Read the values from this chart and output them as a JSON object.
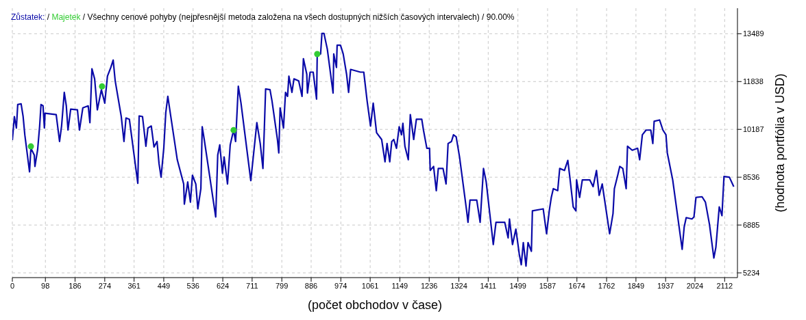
{
  "chart_data": {
    "type": "line",
    "title": "Všechny cenové pohyby (nejpřesnější metoda založena na všech dostupných nižších časových intervalech) / 90.00%",
    "xlabel": "(počet obchodov v čase)",
    "ylabel": "(hodnota portfólia v USD)",
    "legend": "top left",
    "annotations": [
      "/",
      "/"
    ],
    "grid": true,
    "marker": "none",
    "line_style": "solid",
    "xlim": [
      0,
      2150
    ],
    "xticks": [
      0,
      98,
      186,
      274,
      361,
      449,
      536,
      624,
      711,
      799,
      886,
      974,
      1061,
      1149,
      1236,
      1324,
      1411,
      1499,
      1587,
      1674,
      1762,
      1849,
      1937,
      2024,
      2112
    ],
    "ylim": [
      5070,
      14370
    ],
    "yticks": [
      5234,
      6885,
      8536,
      10187,
      11838,
      13489
    ],
    "series": [
      {
        "name": "Zůstatek:",
        "color": "#0a0aa8",
        "x": [
          0,
          6,
          12,
          16,
          26,
          32,
          37,
          51,
          55,
          65,
          67,
          75,
          81,
          85,
          91,
          95,
          97,
          130,
          140,
          146,
          154,
          160,
          165,
          173,
          193,
          199,
          209,
          225,
          230,
          236,
          244,
          252,
          264,
          274,
          282,
          292,
          299,
          305,
          323,
          331,
          337,
          347,
          372,
          376,
          386,
          396,
          402,
          412,
          420,
          429,
          435,
          441,
          449,
          455,
          461,
          469,
          489,
          508,
          510,
          520,
          528,
          534,
          544,
          550,
          559,
          563,
          569,
          603,
          609,
          615,
          623,
          628,
          638,
          646,
          656,
          662,
          670,
          678,
          707,
          715,
          725,
          735,
          743,
          747,
          751,
          764,
          770,
          786,
          790,
          794,
          804,
          810,
          816,
          820,
          829,
          835,
          849,
          859,
          863,
          873,
          875,
          883,
          892,
          902,
          904,
          914,
          918,
          924,
          934,
          951,
          953,
          961,
          963,
          973,
          981,
          991,
          997,
          1003,
          1032,
          1042,
          1052,
          1062,
          1070,
          1080,
          1095,
          1105,
          1111,
          1119,
          1125,
          1131,
          1139,
          1147,
          1154,
          1158,
          1164,
          1174,
          1180,
          1190,
          1198,
          1214,
          1219,
          1229,
          1237,
          1239,
          1249,
          1257,
          1263,
          1277,
          1286,
          1292,
          1302,
          1308,
          1316,
          1326,
          1347,
          1351,
          1357,
          1377,
          1387,
          1397,
          1405,
          1426,
          1434,
          1460,
          1470,
          1474,
          1483,
          1493,
          1503,
          1509,
          1515,
          1523,
          1529,
          1539,
          1542,
          1574,
          1584,
          1592,
          1598,
          1604,
          1617,
          1623,
          1637,
          1647,
          1653,
          1663,
          1671,
          1673,
          1682,
          1690,
          1712,
          1722,
          1732,
          1740,
          1749,
          1771,
          1781,
          1785,
          1795,
          1801,
          1810,
          1820,
          1824,
          1838,
          1854,
          1860,
          1868,
          1879,
          1893,
          1899,
          1903,
          1919,
          1929,
          1938,
          1942,
          1958,
          1986,
          1992,
          1998,
          2015,
          2021,
          2027,
          2045,
          2055,
          2067,
          2080,
          2086,
          2096,
          2104,
          2110,
          2126,
          2139
        ],
        "values": [
          9814,
          10628,
          10233,
          11046,
          11070,
          10628,
          10000,
          8722,
          9535,
          9303,
          8908,
          9489,
          10303,
          11046,
          11000,
          10233,
          10744,
          10698,
          9768,
          10303,
          11465,
          11000,
          10163,
          10884,
          10861,
          10163,
          10930,
          11000,
          10419,
          12279,
          11930,
          10861,
          11558,
          11093,
          12023,
          12325,
          12581,
          11860,
          10628,
          9768,
          10582,
          10535,
          8326,
          10651,
          10628,
          9605,
          10233,
          10303,
          9582,
          9768,
          9001,
          8536,
          9535,
          10768,
          11326,
          10698,
          9140,
          8303,
          7606,
          8373,
          7675,
          8605,
          8303,
          7443,
          8140,
          10279,
          9838,
          7164,
          9303,
          9652,
          8675,
          9233,
          8303,
          9652,
          10163,
          9768,
          11674,
          11093,
          8419,
          9303,
          10419,
          9698,
          8838,
          10163,
          11581,
          11558,
          11163,
          9838,
          9373,
          10930,
          10233,
          11465,
          11326,
          12023,
          11465,
          11930,
          11860,
          11326,
          12628,
          12093,
          11442,
          12163,
          12163,
          11233,
          12744,
          12790,
          13500,
          13500,
          12953,
          11442,
          12790,
          12325,
          13093,
          13093,
          12790,
          12093,
          11465,
          12256,
          12163,
          12163,
          11163,
          10303,
          11093,
          10070,
          9838,
          9070,
          9698,
          9070,
          9768,
          9838,
          9535,
          10279,
          10000,
          10396,
          9605,
          9140,
          10698,
          9838,
          10535,
          10535,
          10163,
          9535,
          9535,
          8768,
          8908,
          8071,
          8838,
          8838,
          8303,
          9698,
          9768,
          10000,
          9930,
          9233,
          7373,
          6978,
          7745,
          7745,
          6978,
          8838,
          8373,
          6211,
          6978,
          6978,
          6443,
          7094,
          6211,
          6745,
          5885,
          5513,
          6280,
          5467,
          6280,
          5978,
          7373,
          7443,
          6583,
          7373,
          7838,
          8140,
          8071,
          8838,
          8768,
          9117,
          8536,
          7512,
          7373,
          8443,
          7838,
          8443,
          8443,
          8210,
          8768,
          7908,
          8303,
          6583,
          7280,
          8140,
          8605,
          8908,
          8838,
          8140,
          9605,
          9466,
          9535,
          9140,
          10000,
          10163,
          10163,
          9698,
          10465,
          10512,
          10163,
          10000,
          9373,
          8443,
          6048,
          6815,
          7141,
          7094,
          7164,
          7838,
          7861,
          7675,
          6908,
          5746,
          6118,
          7512,
          7210,
          8559,
          8536,
          8210
        ]
      },
      {
        "name": "Majetek",
        "type": "scatter",
        "marker": "circle",
        "color": "#33cc33",
        "x": [
          55,
          266,
          656,
          904
        ],
        "values": [
          9600,
          11670,
          10160,
          12790
        ]
      }
    ]
  }
}
